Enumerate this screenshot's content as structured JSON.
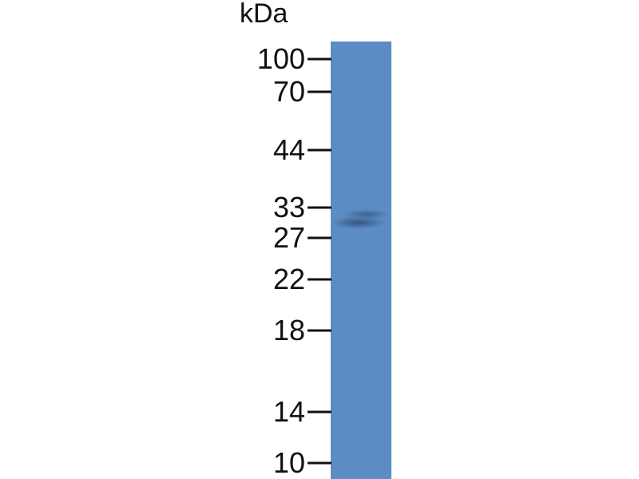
{
  "unit_label": "kDa",
  "markers": [
    "100",
    "70",
    "44",
    "33",
    "27",
    "22",
    "18",
    "14",
    "10"
  ],
  "lane_color": "#5b8cc4",
  "band": {
    "approx_kda": "~30"
  }
}
